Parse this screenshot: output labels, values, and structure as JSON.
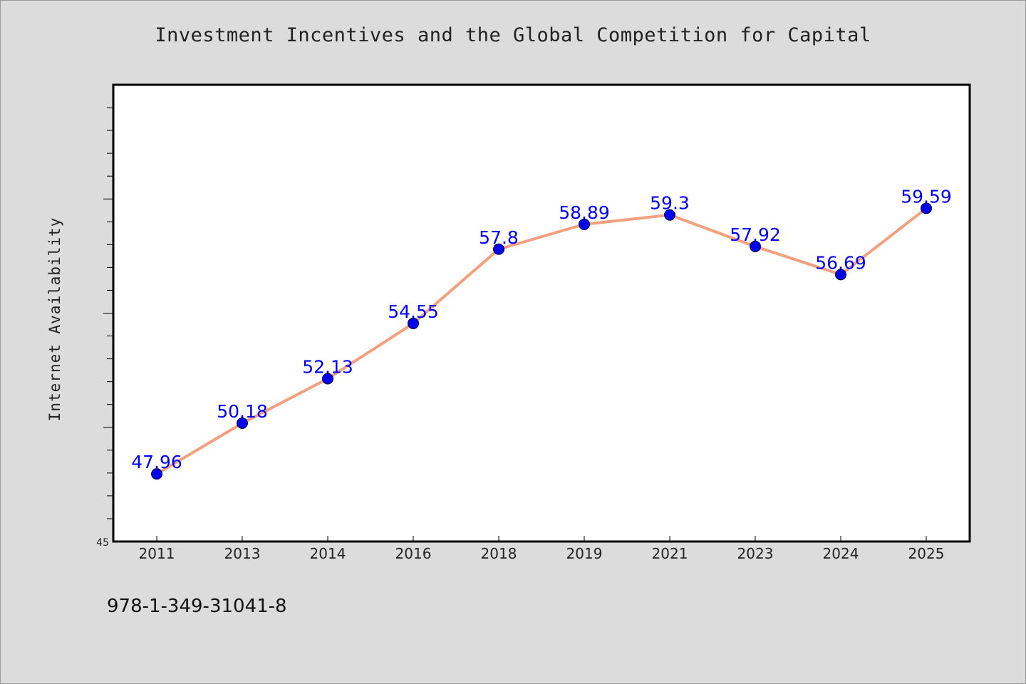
{
  "chart_data": {
    "type": "line",
    "title": "Investment Incentives and the Global Competition for Capital",
    "xlabel": "",
    "ylabel": "Internet Availability",
    "categories": [
      "2011",
      "2013",
      "2014",
      "2016",
      "2018",
      "2019",
      "2021",
      "2023",
      "2024",
      "2025"
    ],
    "series": [
      {
        "values": [
          47.96,
          50.18,
          52.13,
          54.55,
          57.8,
          58.89,
          59.3,
          57.92,
          56.69,
          59.59
        ],
        "data_labels": [
          "47.96",
          "50.18",
          "52.13",
          "54.55",
          "57.8",
          "58.89",
          "59.3",
          "57.92",
          "56.69",
          "59.59"
        ],
        "line_color": "#f4a07e",
        "marker_color": "#0000ee",
        "label_color": "#0000ff"
      }
    ],
    "ylim": [
      45,
      65
    ],
    "yticks_labeled": [
      "45"
    ],
    "grid": false,
    "legend": "none"
  },
  "footer": {
    "text": "978-1-349-31041-8"
  },
  "colors": {
    "background": "#dcdcdc",
    "plot_background": "#ffffff",
    "axes": "#000000"
  }
}
